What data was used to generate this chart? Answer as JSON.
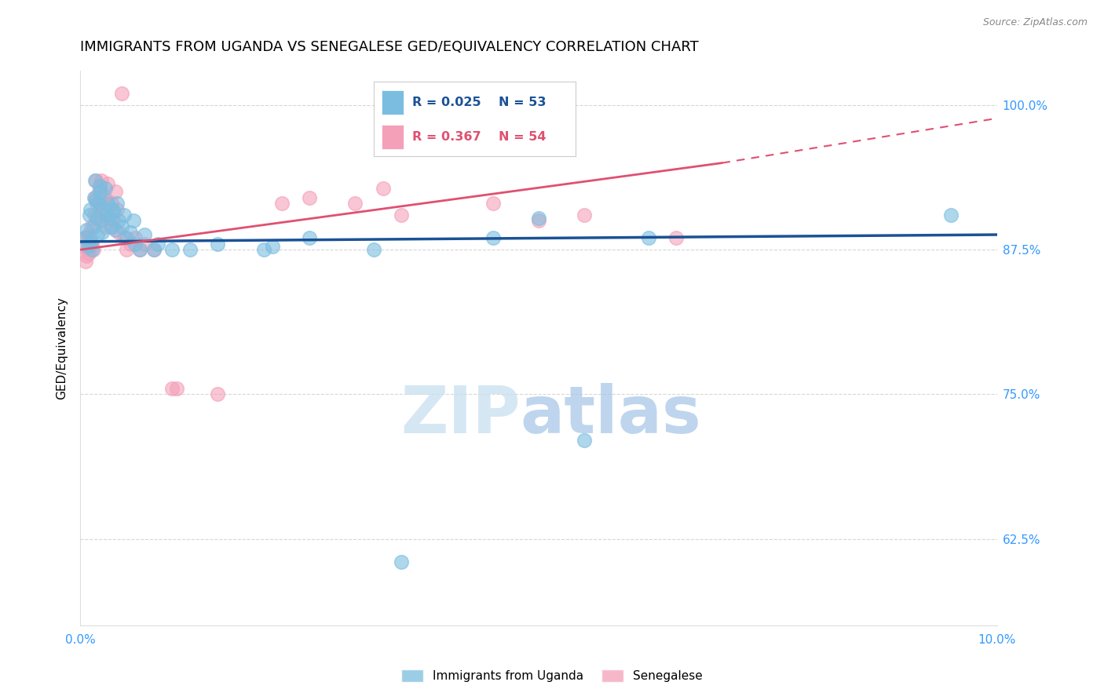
{
  "title": "IMMIGRANTS FROM UGANDA VS SENEGALESE GED/EQUIVALENCY CORRELATION CHART",
  "source": "Source: ZipAtlas.com",
  "ylabel": "GED/Equivalency",
  "yticks": [
    62.5,
    75.0,
    87.5,
    100.0
  ],
  "ytick_labels": [
    "62.5%",
    "75.0%",
    "87.5%",
    "100.0%"
  ],
  "xlim": [
    0.0,
    10.0
  ],
  "ylim": [
    55.0,
    103.0
  ],
  "legend_label1": "Immigrants from Uganda",
  "legend_label2": "Senegalese",
  "blue_color": "#7bbde0",
  "pink_color": "#f4a0b8",
  "blue_line_color": "#1a5296",
  "pink_line_color": "#e05070",
  "blue_scatter": [
    [
      0.05,
      88.5
    ],
    [
      0.07,
      89.2
    ],
    [
      0.08,
      87.8
    ],
    [
      0.09,
      88.0
    ],
    [
      0.1,
      90.5
    ],
    [
      0.11,
      91.0
    ],
    [
      0.12,
      88.2
    ],
    [
      0.13,
      87.5
    ],
    [
      0.14,
      89.5
    ],
    [
      0.15,
      92.0
    ],
    [
      0.16,
      93.5
    ],
    [
      0.17,
      91.8
    ],
    [
      0.18,
      90.2
    ],
    [
      0.19,
      88.8
    ],
    [
      0.2,
      91.5
    ],
    [
      0.21,
      93.0
    ],
    [
      0.22,
      92.5
    ],
    [
      0.23,
      90.0
    ],
    [
      0.24,
      89.0
    ],
    [
      0.25,
      91.2
    ],
    [
      0.27,
      92.8
    ],
    [
      0.28,
      90.5
    ],
    [
      0.3,
      91.5
    ],
    [
      0.32,
      90.2
    ],
    [
      0.33,
      89.5
    ],
    [
      0.35,
      91.0
    ],
    [
      0.37,
      90.8
    ],
    [
      0.38,
      89.2
    ],
    [
      0.4,
      91.5
    ],
    [
      0.42,
      90.0
    ],
    [
      0.45,
      89.5
    ],
    [
      0.48,
      90.5
    ],
    [
      0.5,
      88.5
    ],
    [
      0.55,
      89.0
    ],
    [
      0.58,
      90.0
    ],
    [
      0.6,
      88.0
    ],
    [
      0.65,
      87.5
    ],
    [
      0.7,
      88.8
    ],
    [
      0.8,
      87.5
    ],
    [
      0.85,
      88.0
    ],
    [
      1.0,
      87.5
    ],
    [
      1.2,
      87.5
    ],
    [
      1.5,
      88.0
    ],
    [
      2.0,
      87.5
    ],
    [
      2.1,
      87.8
    ],
    [
      2.5,
      88.5
    ],
    [
      3.2,
      87.5
    ],
    [
      4.5,
      88.5
    ],
    [
      5.0,
      90.2
    ],
    [
      5.5,
      71.0
    ],
    [
      6.2,
      88.5
    ],
    [
      9.5,
      90.5
    ],
    [
      3.5,
      60.5
    ]
  ],
  "pink_scatter": [
    [
      0.04,
      87.8
    ],
    [
      0.05,
      88.5
    ],
    [
      0.06,
      86.5
    ],
    [
      0.07,
      87.0
    ],
    [
      0.08,
      88.8
    ],
    [
      0.09,
      87.2
    ],
    [
      0.1,
      88.5
    ],
    [
      0.11,
      87.8
    ],
    [
      0.12,
      89.5
    ],
    [
      0.13,
      88.0
    ],
    [
      0.14,
      87.5
    ],
    [
      0.15,
      90.5
    ],
    [
      0.16,
      92.0
    ],
    [
      0.17,
      93.5
    ],
    [
      0.18,
      91.5
    ],
    [
      0.19,
      90.0
    ],
    [
      0.2,
      92.5
    ],
    [
      0.21,
      93.0
    ],
    [
      0.22,
      91.0
    ],
    [
      0.23,
      93.5
    ],
    [
      0.24,
      91.5
    ],
    [
      0.25,
      90.5
    ],
    [
      0.26,
      92.0
    ],
    [
      0.27,
      89.5
    ],
    [
      0.28,
      90.2
    ],
    [
      0.29,
      91.8
    ],
    [
      0.3,
      93.2
    ],
    [
      0.32,
      90.5
    ],
    [
      0.34,
      91.5
    ],
    [
      0.35,
      89.5
    ],
    [
      0.36,
      90.0
    ],
    [
      0.38,
      92.5
    ],
    [
      0.4,
      91.0
    ],
    [
      0.42,
      89.0
    ],
    [
      0.45,
      101.0
    ],
    [
      0.48,
      88.5
    ],
    [
      0.5,
      87.5
    ],
    [
      0.55,
      88.0
    ],
    [
      0.6,
      88.5
    ],
    [
      0.65,
      87.5
    ],
    [
      0.7,
      88.0
    ],
    [
      0.8,
      87.5
    ],
    [
      1.0,
      75.5
    ],
    [
      1.05,
      75.5
    ],
    [
      1.5,
      75.0
    ],
    [
      2.2,
      91.5
    ],
    [
      2.5,
      92.0
    ],
    [
      3.0,
      91.5
    ],
    [
      3.3,
      92.8
    ],
    [
      3.5,
      90.5
    ],
    [
      4.5,
      91.5
    ],
    [
      5.0,
      90.0
    ],
    [
      5.5,
      90.5
    ],
    [
      6.5,
      88.5
    ]
  ],
  "blue_trend": [
    0.0,
    10.0,
    88.2,
    88.8
  ],
  "pink_trend_solid": [
    0.0,
    7.0,
    87.5,
    95.0
  ],
  "pink_trend_dashed": [
    7.0,
    10.5,
    95.0,
    99.5
  ],
  "watermark_zip": "ZIP",
  "watermark_atlas": "atlas",
  "background_color": "#ffffff",
  "grid_color": "#cccccc",
  "tick_color": "#3399ff",
  "title_fontsize": 13,
  "label_fontsize": 11
}
